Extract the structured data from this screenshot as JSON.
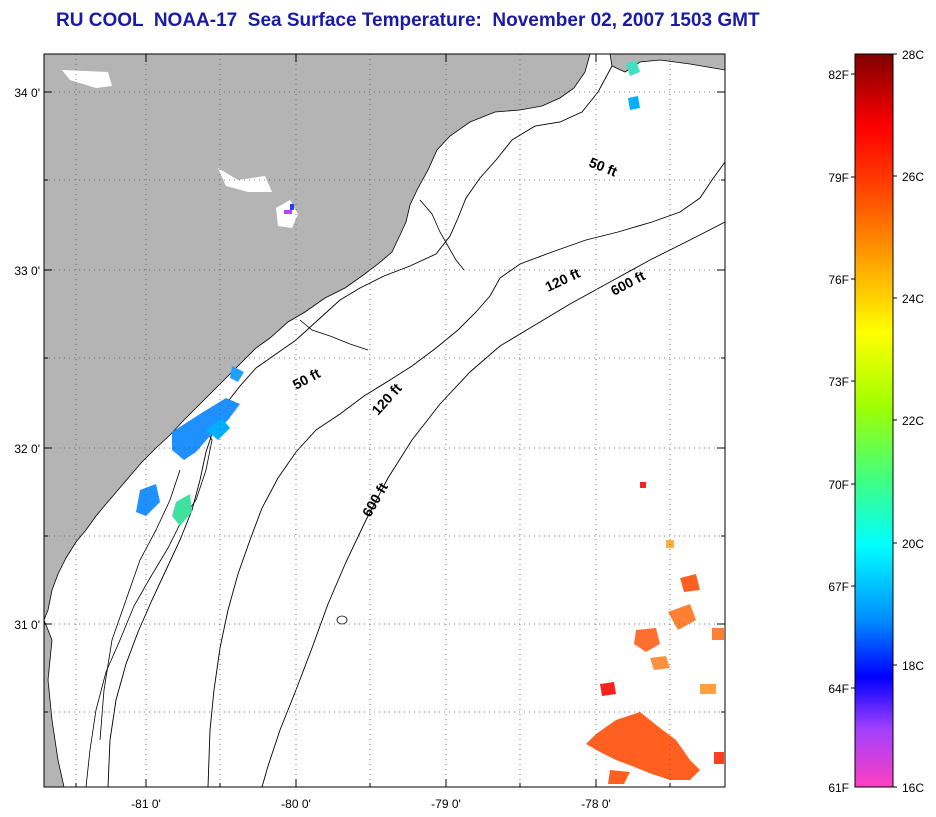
{
  "title": "RU COOL  NOAA-17  Sea Surface Temperature:  November 02, 2007 1503 GMT",
  "map": {
    "lat_labels": [
      "34 0'",
      "33 0'",
      "32 0'",
      "31 0'"
    ],
    "lon_labels": [
      "-81 0'",
      "-80 0'",
      "-79 0'",
      "-78 0'"
    ],
    "depth_labels": [
      "50 ft",
      "50 ft",
      "120 ft",
      "120 ft",
      "600 ft",
      "600 ft"
    ],
    "colors": {
      "land": "#b4b4b4",
      "ocean": "#ffffff",
      "grid": "#555555"
    }
  },
  "colorbar": {
    "fahrenheit_labels": [
      "82F",
      "79F",
      "76F",
      "73F",
      "70F",
      "67F",
      "64F",
      "61F"
    ],
    "celsius_labels": [
      "28C",
      "26C",
      "24C",
      "22C",
      "20C",
      "18C",
      "16C"
    ],
    "range_celsius": [
      16,
      28
    ],
    "colors": [
      "#ff40c0",
      "#a040ff",
      "#0000ff",
      "#00a0ff",
      "#00ffff",
      "#40ff80",
      "#80ff00",
      "#ffff00",
      "#ffa000",
      "#ff4000",
      "#ff0000",
      "#c00000",
      "#800000"
    ]
  }
}
